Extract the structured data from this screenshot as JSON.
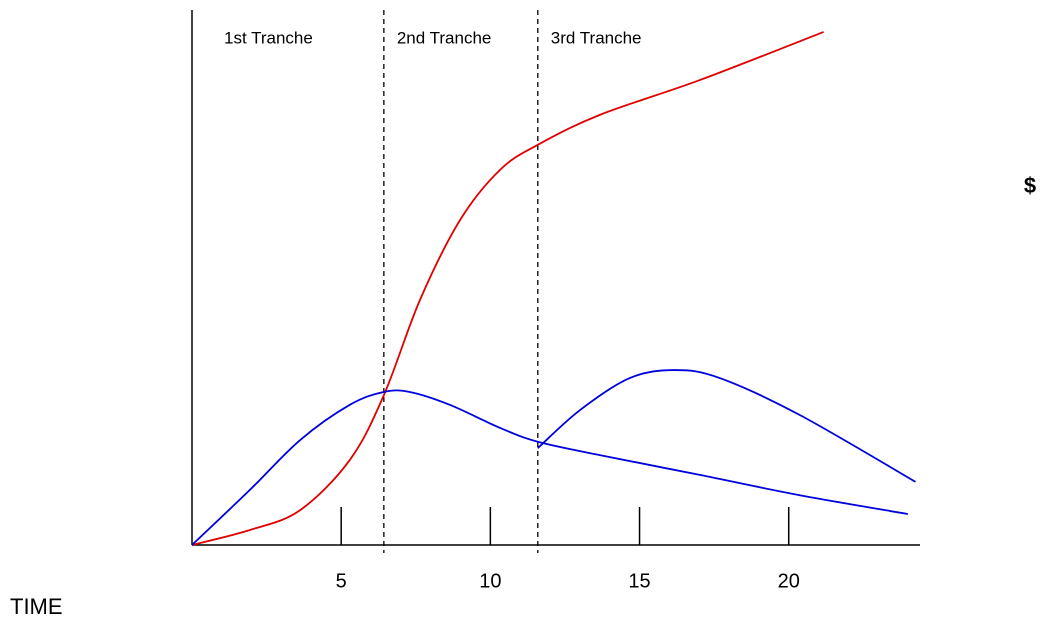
{
  "chart_data": {
    "type": "line",
    "y_label": "$",
    "x_label": "TIME",
    "annotations": [
      "1st Tranche",
      "2nd Tranche",
      "3rd Tranche"
    ],
    "dividers": [
      6.43,
      11.59
    ],
    "xlim": [
      0,
      24.4
    ],
    "xticks": [
      5,
      10,
      15,
      20
    ],
    "ylim": [
      0,
      100
    ],
    "series": [
      {
        "color": "#e00000",
        "x": [
          0,
          1.94,
          3.62,
          5.29,
          6.43,
          7.64,
          8.98,
          10.32,
          11.59,
          13.67,
          17.02,
          21.17
        ],
        "values": [
          0,
          2.8,
          6.5,
          15.9,
          28.0,
          45.8,
          60.7,
          70.1,
          74.8,
          80.4,
          86.9,
          95.9
        ]
      },
      {
        "color": "#0000dd",
        "x": [
          0,
          1.94,
          3.62,
          5.29,
          6.43,
          7.3,
          8.64,
          10.32,
          11.59,
          13.67,
          17.02,
          20.37,
          23.99
        ],
        "values": [
          0,
          10.3,
          19.6,
          26.2,
          28.6,
          28.6,
          26.2,
          21.9,
          19.3,
          16.8,
          13.1,
          9.3,
          5.8
        ]
      },
      {
        "color": "#0000dd",
        "x": [
          11.59,
          13.0,
          14.67,
          16.18,
          17.69,
          20.37,
          24.25
        ],
        "values": [
          18.1,
          25.2,
          31.2,
          32.7,
          31.2,
          24.3,
          11.8
        ]
      }
    ]
  }
}
